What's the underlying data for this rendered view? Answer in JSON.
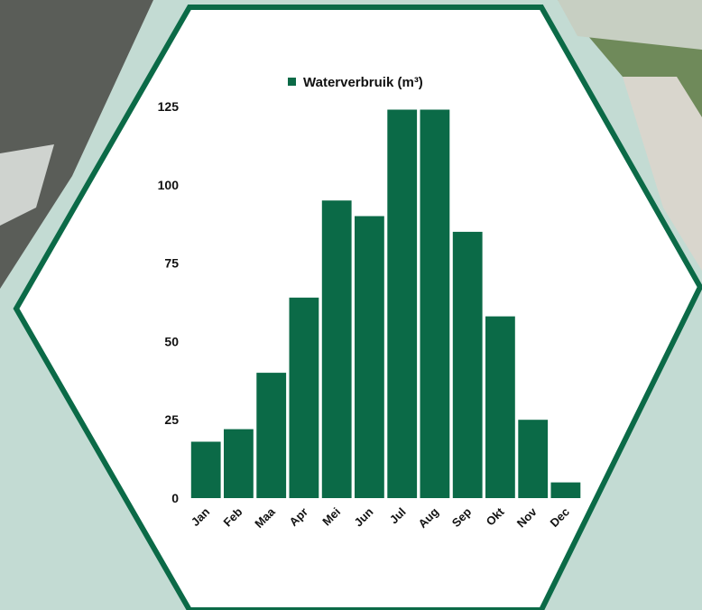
{
  "colors": {
    "background": "#c3dbd3",
    "panel": "#ffffff",
    "accent": "#0b6a47",
    "text": "#111111"
  },
  "chart_data": {
    "type": "bar",
    "title": "",
    "xlabel": "",
    "ylabel": "",
    "legend": {
      "label": "Waterverbruik (m³)",
      "placement": "top-center"
    },
    "categories": [
      "Jan",
      "Feb",
      "Maa",
      "Apr",
      "Mei",
      "Jun",
      "Jul",
      "Aug",
      "Sep",
      "Okt",
      "Nov",
      "Dec"
    ],
    "series": [
      {
        "name": "Waterverbruik (m³)",
        "values": [
          18,
          22,
          40,
          64,
          95,
          90,
          124,
          124,
          85,
          58,
          25,
          5
        ]
      }
    ],
    "yticks": [
      "0",
      "25",
      "50",
      "75",
      "100",
      "125"
    ],
    "ylim": [
      0,
      125
    ],
    "grid": false
  }
}
